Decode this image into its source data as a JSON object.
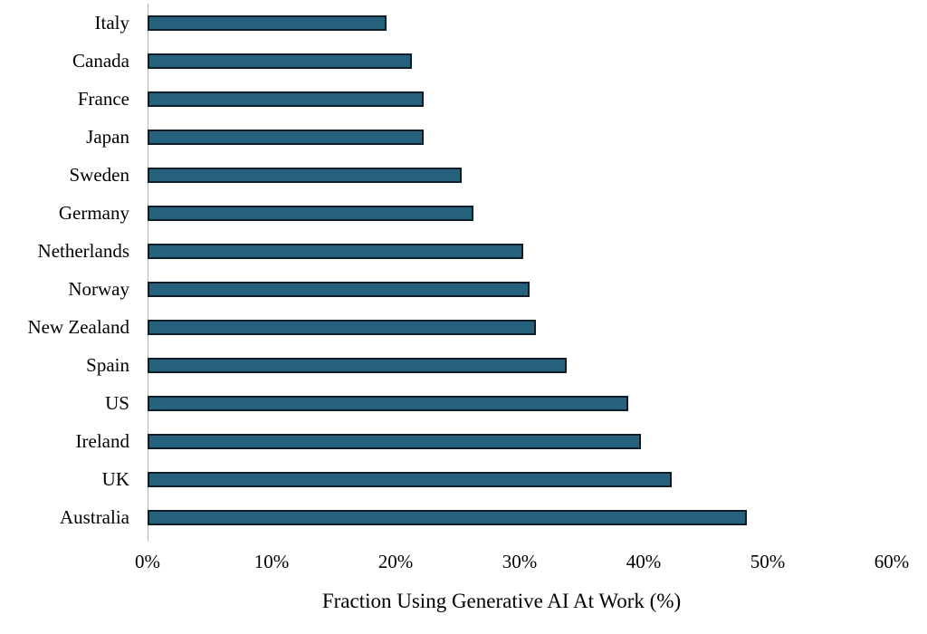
{
  "chart_data": {
    "type": "bar",
    "orientation": "horizontal",
    "title": "",
    "xlabel": "Fraction Using Generative AI At Work (%)",
    "ylabel": "",
    "categories": [
      "Italy",
      "Canada",
      "France",
      "Japan",
      "Sweden",
      "Germany",
      "Netherlands",
      "Norway",
      "New Zealand",
      "Spain",
      "US",
      "Ireland",
      "UK",
      "Australia"
    ],
    "values": [
      19,
      21,
      22,
      22,
      25,
      26,
      30,
      30.5,
      31,
      33.5,
      38.5,
      39.5,
      42,
      48
    ],
    "xlim": [
      0,
      60
    ],
    "x_tick_labels": [
      "0%",
      "10%",
      "20%",
      "30%",
      "40%",
      "50%",
      "60%"
    ],
    "grid": false,
    "legend": false,
    "bar_color": "#26617e",
    "bar_border_color": "#0f1e2a",
    "axis_line_color": "#b3b3b3",
    "text_color": "#000000",
    "background_color": "#ffffff"
  }
}
